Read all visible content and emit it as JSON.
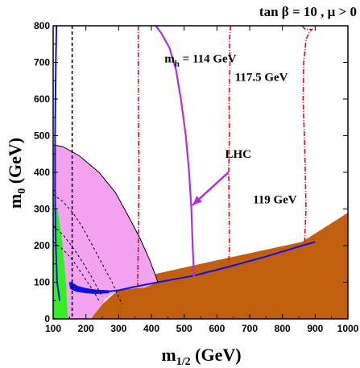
{
  "chart_data": {
    "type": "line",
    "title": "tan β = 10 ,  μ > 0",
    "xlabel": "m",
    "xlabel_sub": "1/2",
    "xlabel_unit": " (GeV)",
    "ylabel": "m",
    "ylabel_sub": "0",
    "ylabel_unit": " (GeV)",
    "xlim": [
      100,
      1000
    ],
    "ylim": [
      0,
      800
    ],
    "x_ticks": [
      100,
      200,
      300,
      400,
      500,
      600,
      700,
      800,
      900,
      1000
    ],
    "y_ticks": [
      0,
      100,
      200,
      300,
      400,
      500,
      600,
      700,
      800
    ],
    "grid": false,
    "colors": {
      "brown": "#c0600f",
      "pink": "#f4a3f0",
      "green": "#33ee22",
      "blue": "#1010e0",
      "purple": "#b030e0",
      "red": "#e01010",
      "black": "#000000"
    },
    "regions": [
      {
        "name": "brown-excluded",
        "polygon": [
          [
            215,
            0
          ],
          [
            1000,
            0
          ],
          [
            1000,
            290
          ],
          [
            860,
            210
          ],
          [
            600,
            160
          ],
          [
            400,
            120
          ],
          [
            300,
            80
          ],
          [
            250,
            40
          ]
        ]
      },
      {
        "name": "pink-region",
        "polygon": [
          [
            100,
            475
          ],
          [
            130,
            470
          ],
          [
            180,
            445
          ],
          [
            240,
            400
          ],
          [
            290,
            345
          ],
          [
            330,
            280
          ],
          [
            365,
            220
          ],
          [
            395,
            160
          ],
          [
            420,
            100
          ],
          [
            405,
            95
          ],
          [
            380,
            85
          ],
          [
            300,
            80
          ],
          [
            260,
            55
          ],
          [
            250,
            40
          ],
          [
            215,
            0
          ],
          [
            100,
            0
          ]
        ]
      },
      {
        "name": "green-region",
        "polygon": [
          [
            100,
            330
          ],
          [
            115,
            290
          ],
          [
            125,
            230
          ],
          [
            133,
            160
          ],
          [
            140,
            90
          ],
          [
            142,
            40
          ],
          [
            145,
            0
          ],
          [
            100,
            0
          ]
        ]
      },
      {
        "name": "blue-band",
        "polygon": [
          [
            148,
            100
          ],
          [
            165,
            92
          ],
          [
            200,
            84
          ],
          [
            230,
            80
          ],
          [
            270,
            78
          ],
          [
            270,
            70
          ],
          [
            230,
            68
          ],
          [
            200,
            70
          ],
          [
            170,
            74
          ],
          [
            152,
            82
          ]
        ]
      }
    ],
    "curves": [
      {
        "name": "blue-boundary",
        "points": [
          [
            152,
            100
          ],
          [
            180,
            85
          ],
          [
            240,
            72
          ],
          [
            300,
            78
          ],
          [
            350,
            88
          ],
          [
            420,
            100
          ],
          [
            530,
            118
          ],
          [
            640,
            143
          ],
          [
            750,
            170
          ],
          [
            860,
            200
          ],
          [
            900,
            210
          ]
        ]
      },
      {
        "name": "blue-left",
        "points": [
          [
            110,
            800
          ],
          [
            108,
            700
          ],
          [
            106,
            500
          ],
          [
            106,
            350
          ],
          [
            108,
            200
          ],
          [
            112,
            100
          ],
          [
            120,
            50
          ]
        ]
      },
      {
        "name": "pink-boundary",
        "points": [
          [
            100,
            475
          ],
          [
            130,
            470
          ],
          [
            180,
            445
          ],
          [
            240,
            400
          ],
          [
            290,
            345
          ],
          [
            330,
            280
          ],
          [
            365,
            220
          ],
          [
            395,
            160
          ],
          [
            420,
            100
          ]
        ]
      },
      {
        "name": "mh114",
        "points": [
          [
            413,
            800
          ],
          [
            430,
            780
          ],
          [
            455,
            740
          ],
          [
            475,
            680
          ],
          [
            490,
            600
          ],
          [
            505,
            500
          ],
          [
            515,
            400
          ],
          [
            522,
            300
          ],
          [
            526,
            200
          ],
          [
            530,
            115
          ]
        ]
      },
      {
        "name": "mh117.5",
        "points": [
          [
            642,
            800
          ],
          [
            638,
            760
          ],
          [
            640,
            700
          ],
          [
            637,
            600
          ],
          [
            638,
            500
          ],
          [
            636,
            400
          ],
          [
            637,
            300
          ],
          [
            638,
            200
          ],
          [
            636,
            150
          ]
        ]
      },
      {
        "name": "mh119",
        "points": [
          [
            860,
            800
          ],
          [
            870,
            790
          ],
          [
            890,
            790
          ],
          [
            880,
            780
          ],
          [
            872,
            760
          ],
          [
            865,
            700
          ],
          [
            863,
            600
          ],
          [
            867,
            500
          ],
          [
            870,
            400
          ],
          [
            872,
            300
          ],
          [
            868,
            210
          ]
        ]
      },
      {
        "name": "red-left",
        "points": [
          [
            360,
            800
          ],
          [
            360,
            600
          ],
          [
            362,
            400
          ],
          [
            360,
            200
          ],
          [
            358,
            90
          ]
        ]
      },
      {
        "name": "black-vertical",
        "points": [
          [
            158,
            800
          ],
          [
            158,
            0
          ]
        ]
      },
      {
        "name": "dash1",
        "points": [
          [
            100,
            340
          ],
          [
            130,
            320
          ],
          [
            160,
            290
          ],
          [
            190,
            250
          ],
          [
            220,
            200
          ],
          [
            250,
            150
          ],
          [
            280,
            100
          ],
          [
            310,
            40
          ]
        ]
      },
      {
        "name": "dash2",
        "points": [
          [
            100,
            210
          ],
          [
            130,
            190
          ],
          [
            160,
            160
          ],
          [
            190,
            120
          ],
          [
            220,
            80
          ],
          [
            240,
            50
          ]
        ]
      },
      {
        "name": "dash3",
        "points": [
          [
            100,
            255
          ],
          [
            130,
            230
          ],
          [
            160,
            195
          ],
          [
            190,
            155
          ],
          [
            220,
            110
          ],
          [
            250,
            60
          ]
        ]
      }
    ],
    "labels": [
      {
        "text": "m",
        "sub": "h",
        "rest": " = 114 GeV",
        "x": 440,
        "y": 700
      },
      {
        "text": "117.5 GeV",
        "x": 655,
        "y": 650
      },
      {
        "text": "LHC",
        "x": 625,
        "y": 440
      },
      {
        "text": "119 GeV",
        "x": 710,
        "y": 315
      }
    ],
    "arrow": {
      "name": "lhc-arrow",
      "from": [
        635,
        400
      ],
      "to": [
        525,
        310
      ]
    }
  }
}
